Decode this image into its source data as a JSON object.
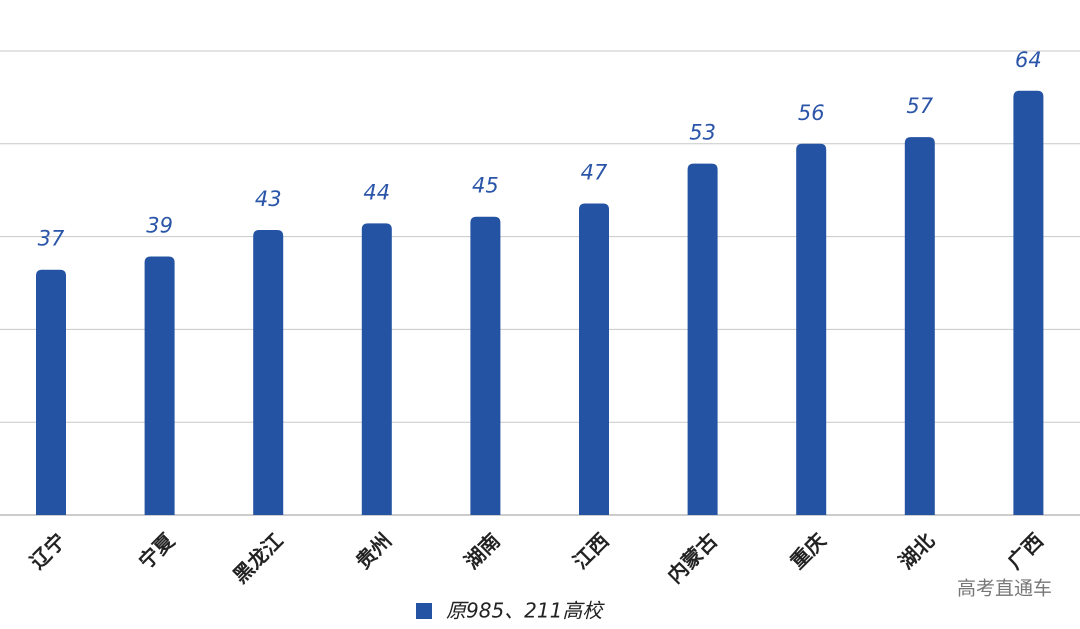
{
  "chart_data": {
    "type": "bar",
    "categories": [
      "辽宁",
      "宁夏",
      "黑龙江",
      "贵州",
      "湖南",
      "江西",
      "内蒙古",
      "重庆",
      "湖北",
      "广西"
    ],
    "series": [
      {
        "name": "原985、211高校",
        "color": "#2553a3",
        "values": [
          37,
          39,
          43,
          44,
          45,
          47,
          53,
          56,
          57,
          64
        ]
      }
    ],
    "ylim": [
      0,
      70
    ],
    "yticks": [
      0,
      14,
      28,
      42,
      56,
      70
    ],
    "grid": true,
    "watermark": "高考直通车"
  }
}
